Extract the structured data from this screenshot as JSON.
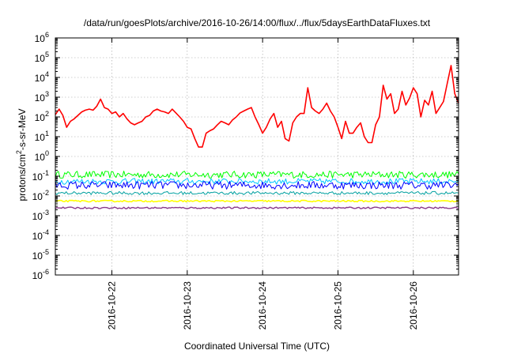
{
  "chart_data": {
    "type": "line",
    "title": "/data/run/goesPlots/archive/2016-10-26/14:00/flux/../flux/5daysEarthDataFluxes.txt",
    "xlabel": "Coordinated Universal Time (UTC)",
    "ylabel": {
      "base": "protons/cm",
      "sup": "2",
      "rest": "-s-sr-MeV"
    },
    "yscale": "log",
    "ylim_exp": [
      -6,
      6
    ],
    "yticks": [
      {
        "exp": -6,
        "base": "10",
        "sup": "-6"
      },
      {
        "exp": -5,
        "base": "10",
        "sup": "-5"
      },
      {
        "exp": -4,
        "base": "10",
        "sup": "-4"
      },
      {
        "exp": -3,
        "base": "10",
        "sup": "-3"
      },
      {
        "exp": -2,
        "base": "10",
        "sup": "-2"
      },
      {
        "exp": -1,
        "base": "10",
        "sup": "-1"
      },
      {
        "exp": 0,
        "base": "10",
        "sup": "0"
      },
      {
        "exp": 1,
        "base": "10",
        "sup": "1"
      },
      {
        "exp": 2,
        "base": "10",
        "sup": "2"
      },
      {
        "exp": 3,
        "base": "10",
        "sup": "3"
      },
      {
        "exp": 4,
        "base": "10",
        "sup": "4"
      },
      {
        "exp": 5,
        "base": "10",
        "sup": "5"
      },
      {
        "exp": 6,
        "base": "10",
        "sup": "6"
      }
    ],
    "xlim_days": [
      21.25,
      26.6
    ],
    "xticks": [
      {
        "day": 22,
        "label": "2016-10-22"
      },
      {
        "day": 23,
        "label": "2016-10-23"
      },
      {
        "day": 24,
        "label": "2016-10-24"
      },
      {
        "day": 25,
        "label": "2016-10-25"
      },
      {
        "day": 26,
        "label": "2016-10-26"
      }
    ],
    "grid": true,
    "series": [
      {
        "color": "#ff0000",
        "width": 1.6,
        "x": [
          21.25,
          21.3,
          21.35,
          21.4,
          21.45,
          21.5,
          21.55,
          21.6,
          21.65,
          21.7,
          21.75,
          21.8,
          21.85,
          21.9,
          21.95,
          22.0,
          22.05,
          22.1,
          22.15,
          22.2,
          22.25,
          22.3,
          22.35,
          22.4,
          22.45,
          22.5,
          22.55,
          22.6,
          22.65,
          22.7,
          22.75,
          22.8,
          22.85,
          22.9,
          22.95,
          23.0,
          23.05,
          23.1,
          23.15,
          23.2,
          23.25,
          23.3,
          23.35,
          23.4,
          23.45,
          23.5,
          23.55,
          23.6,
          23.65,
          23.7,
          23.75,
          23.8,
          23.85,
          23.9,
          23.95,
          24.0,
          24.05,
          24.1,
          24.15,
          24.2,
          24.25,
          24.3,
          24.35,
          24.4,
          24.45,
          24.5,
          24.55,
          24.6,
          24.65,
          24.7,
          24.75,
          24.8,
          24.85,
          24.9,
          24.95,
          25.0,
          25.05,
          25.1,
          25.15,
          25.2,
          25.25,
          25.3,
          25.35,
          25.4,
          25.45,
          25.5,
          25.55,
          25.6,
          25.65,
          25.7,
          25.75,
          25.8,
          25.85,
          25.9,
          25.95,
          26.0,
          26.05,
          26.1,
          26.15,
          26.2,
          26.25,
          26.3,
          26.35,
          26.4,
          26.45,
          26.5,
          26.55,
          26.6
        ],
        "y": [
          130,
          250,
          120,
          30,
          60,
          80,
          120,
          180,
          220,
          250,
          220,
          350,
          800,
          300,
          250,
          150,
          180,
          100,
          150,
          80,
          50,
          40,
          50,
          60,
          100,
          120,
          200,
          250,
          200,
          180,
          150,
          250,
          160,
          100,
          60,
          30,
          25,
          8,
          3,
          3,
          15,
          20,
          25,
          40,
          60,
          50,
          40,
          70,
          100,
          160,
          200,
          250,
          300,
          100,
          40,
          15,
          30,
          80,
          150,
          30,
          60,
          8,
          6,
          50,
          100,
          150,
          150,
          3000,
          300,
          200,
          150,
          250,
          500,
          200,
          100,
          30,
          8,
          60,
          15,
          15,
          30,
          50,
          10,
          5,
          5,
          40,
          100,
          4000,
          800,
          1500,
          150,
          250,
          2000,
          400,
          900,
          3000,
          1500,
          100,
          700,
          400,
          2000,
          150,
          300,
          600,
          5000,
          40000,
          1500,
          500
        ]
      },
      {
        "color": "#00ff00",
        "width": 1,
        "x": [
          21.25,
          26.6
        ],
        "y_mean": 0.12,
        "y_spread_dex": 0.18,
        "n_points": 260
      },
      {
        "color": "#00c8ff",
        "width": 1,
        "x": [
          21.25,
          26.6
        ],
        "y_mean": 0.055,
        "y_spread_dex": 0.15,
        "n_points": 260
      },
      {
        "color": "#0000ff",
        "width": 1,
        "x": [
          21.25,
          26.6
        ],
        "y_mean": 0.035,
        "y_spread_dex": 0.2,
        "n_points": 260
      },
      {
        "color": "#00a0a0",
        "width": 1,
        "x": [
          21.25,
          26.6
        ],
        "y_mean": 0.014,
        "y_spread_dex": 0.08,
        "n_points": 260
      },
      {
        "color": "#ffff00",
        "width": 1.6,
        "x": [
          21.25,
          26.6
        ],
        "y_mean": 0.0055,
        "y_spread_dex": 0.04,
        "n_points": 260
      },
      {
        "color": "#8b3a8b",
        "width": 1.4,
        "x": [
          21.25,
          26.6
        ],
        "y_mean": 0.0025,
        "y_spread_dex": 0.04,
        "n_points": 260
      }
    ]
  }
}
